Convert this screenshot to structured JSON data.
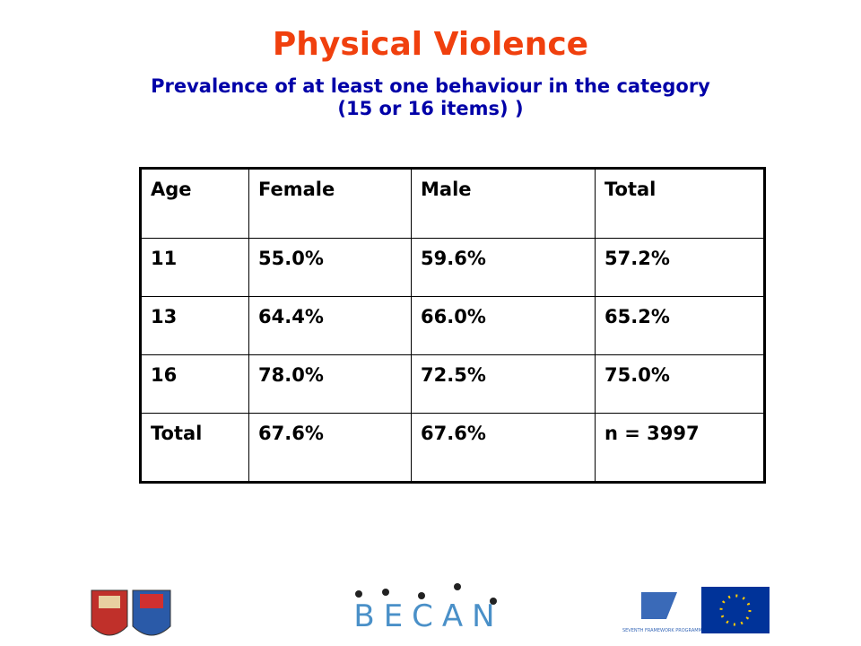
{
  "header": {
    "title": "Physical Violence",
    "subtitle": [
      "Prevalence of at least one behaviour in the category",
      "(15 or 16 items) )"
    ]
  },
  "table": {
    "columns": [
      "Age",
      "Female",
      "Male",
      "Total"
    ],
    "rows": [
      [
        "11",
        "55.0%",
        "59.6%",
        "57.2%"
      ],
      [
        "13",
        "64.4%",
        "66.0%",
        "65.2%"
      ],
      [
        "16",
        "78.0%",
        "72.5%",
        "75.0%"
      ],
      [
        "Total",
        "67.6%",
        "67.6%",
        "n = 3997"
      ]
    ]
  },
  "footer": {
    "logo_text": "BECAN",
    "programme_text": "SEVENTH FRAMEWORK PROGRAMME"
  }
}
